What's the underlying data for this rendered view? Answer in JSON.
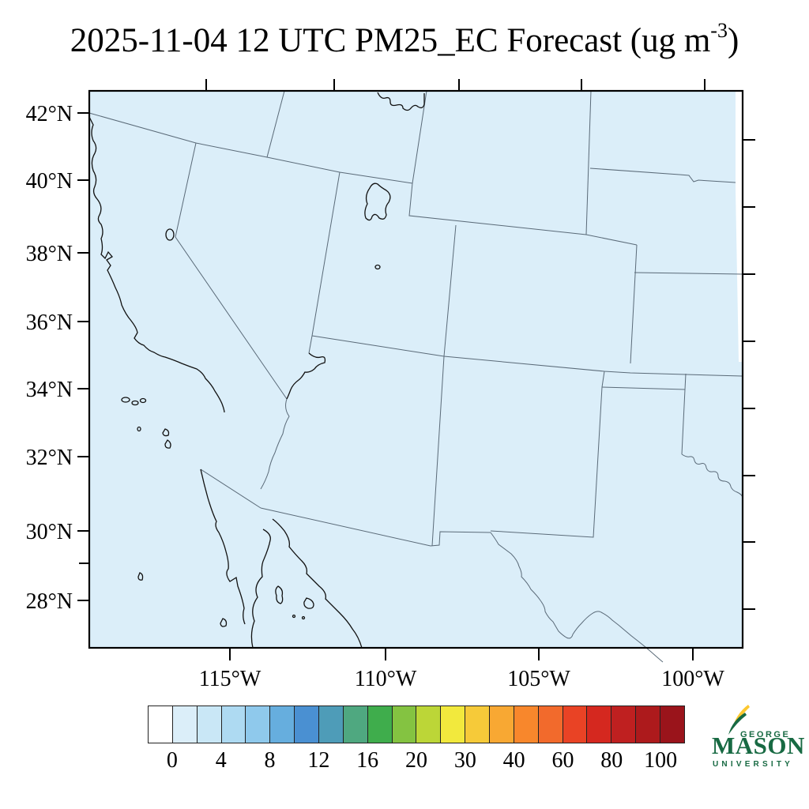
{
  "title": {
    "prefix": "2025-11-04 12 UTC PM25_EC Forecast (ug m",
    "exponent": "-3",
    "suffix": ")"
  },
  "map": {
    "lat_tick_labels": [
      "42°N",
      "40°N",
      "38°N",
      "36°N",
      "34°N",
      "32°N",
      "30°N",
      "28°N"
    ],
    "lon_tick_labels": [
      "115°W",
      "110°W",
      "105°W",
      "100°W"
    ],
    "fill_color": "#dbeef9",
    "no_data_color": "#ffffff",
    "state_border_color": "#5a6a78",
    "coastline_color": "#111111"
  },
  "colorbar": {
    "tick_labels": [
      "0",
      "4",
      "8",
      "12",
      "16",
      "20",
      "30",
      "40",
      "60",
      "80",
      "100"
    ],
    "segment_colors": [
      "#ffffff",
      "#dbeef9",
      "#c9e7f6",
      "#aedaf2",
      "#8fc9ec",
      "#66aede",
      "#4a90d2",
      "#4e9cb8",
      "#4fa880",
      "#3fad4c",
      "#84c341",
      "#bcd637",
      "#f2e93d",
      "#f6ca39",
      "#f8a833",
      "#f8872c",
      "#f26a2c",
      "#e94325",
      "#d5281f",
      "#bf2020",
      "#ad1a1c",
      "#9a141b"
    ]
  },
  "logo": {
    "top": "GEORGE",
    "main": "MASON",
    "bottom": "UNIVERSITY",
    "green": "#186a43",
    "gold": "#fdc82f"
  },
  "chart_data": {
    "type": "map",
    "title": "2025-11-04 12 UTC PM25_EC Forecast (ug m-3)",
    "variable": "PM25_EC",
    "units": "ug m-3",
    "valid_time": "2025-11-04 12 UTC",
    "lat_ticks_deg_n": [
      42,
      40,
      38,
      36,
      34,
      32,
      30,
      28
    ],
    "lon_ticks_deg_w": [
      115,
      110,
      105,
      100
    ],
    "colorbar_tick_values": [
      0,
      4,
      8,
      12,
      16,
      20,
      30,
      40,
      60,
      80,
      100
    ],
    "colorbar_n_segments": 22,
    "field_summary": "PM25_EC concentration uniformly in lowest shaded bin (0-2 ug m-3) across the whole SW-US domain; narrow white no-data sliver along upper right edge",
    "region": "Southwestern United States and northern Mexico (CA, NV, UT, AZ, CO, NM, WY, ID, OR, NE, KS, OK, TX, Baja California, Sonora)"
  }
}
